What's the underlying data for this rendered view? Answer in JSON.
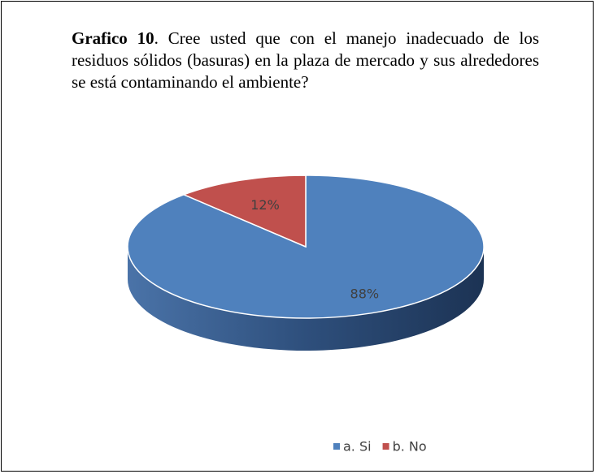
{
  "chart_data": {
    "type": "pie",
    "title_label": "Grafico 10",
    "title": ". Cree usted que con el manejo inadecuado de los residuos sólidos (basuras) en la plaza de mercado y sus alrededores se está contaminando el ambiente?",
    "categories": [
      "a. Si",
      "b. No"
    ],
    "values": [
      88,
      12
    ],
    "value_labels": [
      "88%",
      "12%"
    ],
    "colors": [
      "#4f81bd",
      "#c0504d"
    ],
    "legend": "bottom"
  }
}
